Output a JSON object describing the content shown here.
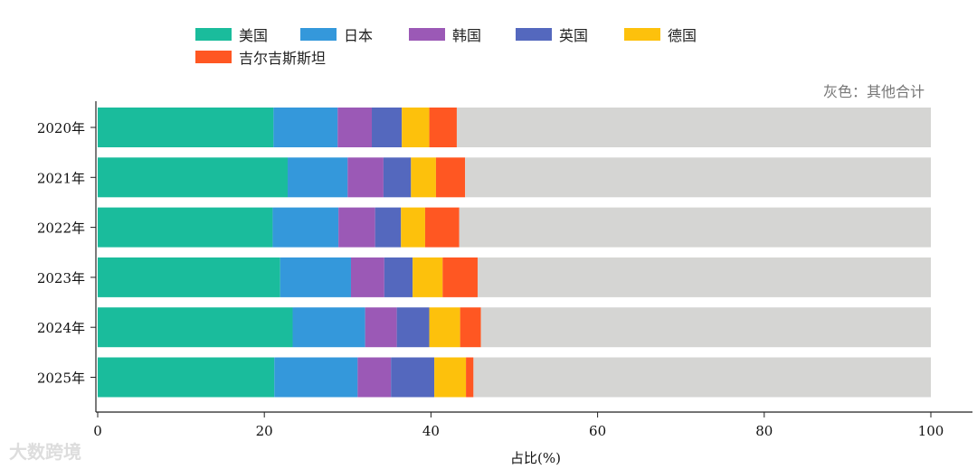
{
  "chart_data": {
    "type": "bar",
    "orientation": "horizontal",
    "stacked": true,
    "categories": [
      "2020年",
      "2021年",
      "2022年",
      "2023年",
      "2024年",
      "2025年"
    ],
    "series": [
      {
        "name": "美国",
        "color": "#1abc9c",
        "values": [
          21.1,
          22.8,
          21.0,
          21.9,
          23.4,
          21.2
        ]
      },
      {
        "name": "日本",
        "color": "#3498db",
        "values": [
          7.7,
          7.2,
          7.9,
          8.5,
          8.7,
          10.0
        ]
      },
      {
        "name": "韩国",
        "color": "#9b59b6",
        "values": [
          4.1,
          4.3,
          4.4,
          4.0,
          3.8,
          4.0
        ]
      },
      {
        "name": "英国",
        "color": "#5468be",
        "values": [
          3.6,
          3.3,
          3.1,
          3.4,
          3.9,
          5.2
        ]
      },
      {
        "name": "德国",
        "color": "#fdc10c",
        "values": [
          3.3,
          3.0,
          2.9,
          3.6,
          3.7,
          3.8
        ]
      },
      {
        "name": "吉尔吉斯斯坦",
        "color": "#ff5722",
        "values": [
          3.3,
          3.5,
          4.1,
          4.2,
          2.5,
          0.9
        ]
      },
      {
        "name": "其他",
        "color": "#d5d5d3",
        "values": [
          56.9,
          55.9,
          56.6,
          54.4,
          54.0,
          54.9
        ]
      }
    ],
    "xlabel": "占比(%)",
    "xlim": [
      0,
      100
    ],
    "xticks": [
      0,
      20,
      40,
      60,
      80,
      100
    ],
    "legend_position": "top",
    "annotation": "灰色：其他合计",
    "grid": false
  },
  "watermark": "大数跨境"
}
